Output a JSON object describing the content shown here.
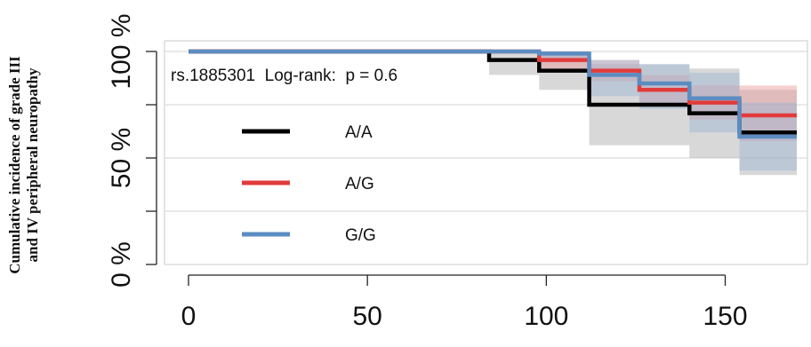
{
  "chart_data": {
    "type": "line",
    "subtype": "step-survival-with-confidence-bands",
    "title": "",
    "xlabel": "",
    "ylabel_lines": [
      "Cumulative incidence of grade III",
      "and IV peripheral neuropathy"
    ],
    "xlim": [
      0,
      170
    ],
    "ylim": [
      0,
      1.05
    ],
    "x_ticks": [
      {
        "value": 0,
        "label": "0"
      },
      {
        "value": 50,
        "label": "50"
      },
      {
        "value": 100,
        "label": "100"
      },
      {
        "value": 150,
        "label": "150"
      }
    ],
    "y_ticks": [
      {
        "value": 0,
        "label": "0 %"
      },
      {
        "value": 0.25,
        "label": ""
      },
      {
        "value": 0.5,
        "label": "50 %"
      },
      {
        "value": 0.75,
        "label": ""
      },
      {
        "value": 1.0,
        "label": "100 %"
      }
    ],
    "grid": {
      "horizontal": true,
      "vertical": false
    },
    "annotation": "rs.1885301  Log-rank:  p = 0.6",
    "legend_placement": "left",
    "series": [
      {
        "name": "A/A",
        "color": "#000000",
        "band_color": "#a8a8a8",
        "x": [
          0,
          84,
          98,
          112,
          140,
          154,
          170
        ],
        "y": [
          1.0,
          0.96,
          0.91,
          0.75,
          0.71,
          0.62,
          0.62
        ],
        "lower": [
          1.0,
          0.89,
          0.82,
          0.56,
          0.5,
          0.42,
          0.42
        ],
        "upper": [
          1.0,
          1.0,
          1.0,
          0.94,
          0.92,
          0.82,
          0.82
        ]
      },
      {
        "name": "A/G",
        "color": "#e23b3b",
        "band_color": "#e89a9a",
        "x": [
          0,
          98,
          112,
          126,
          140,
          154,
          170
        ],
        "y": [
          1.0,
          0.96,
          0.91,
          0.82,
          0.76,
          0.7,
          0.7
        ],
        "lower": [
          1.0,
          0.92,
          0.86,
          0.76,
          0.68,
          0.58,
          0.58
        ],
        "upper": [
          1.0,
          1.0,
          0.96,
          0.89,
          0.84,
          0.84,
          0.84
        ]
      },
      {
        "name": "G/G",
        "color": "#5b8cc2",
        "band_color": "#9cb6d4",
        "x": [
          0,
          98,
          112,
          126,
          140,
          154,
          170
        ],
        "y": [
          1.0,
          0.99,
          0.89,
          0.85,
          0.78,
          0.6,
          0.6
        ],
        "lower": [
          1.0,
          0.96,
          0.79,
          0.73,
          0.62,
          0.44,
          0.44
        ],
        "upper": [
          1.0,
          1.0,
          0.96,
          0.94,
          0.9,
          0.76,
          0.76
        ]
      }
    ]
  }
}
